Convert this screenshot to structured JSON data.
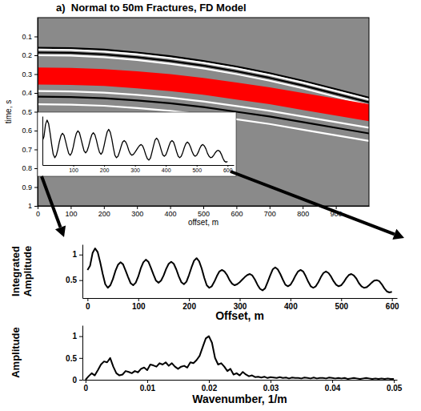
{
  "chart_data": [
    {
      "type": "seismic",
      "title": "a)  Normal to 50m Fractures, FD Model",
      "xlabel": "offset, m",
      "ylabel": "time, s",
      "x": [
        0,
        100,
        200,
        300,
        400,
        500,
        600,
        700,
        800,
        900,
        1000
      ],
      "series": [
        {
          "type": "line",
          "color": "#000000",
          "values": [
            0.16,
            0.162,
            0.17,
            0.185,
            0.205,
            0.23,
            0.26,
            0.295,
            0.335,
            0.38,
            0.425
          ]
        },
        {
          "type": "line",
          "color": "#ffffff",
          "values": [
            0.17,
            0.172,
            0.18,
            0.195,
            0.215,
            0.24,
            0.27,
            0.305,
            0.345,
            0.39,
            0.435
          ]
        },
        {
          "type": "line",
          "color": "#000000",
          "values": [
            0.185,
            0.187,
            0.195,
            0.21,
            0.23,
            0.255,
            0.285,
            0.32,
            0.36,
            0.405,
            0.45
          ]
        },
        {
          "type": "line",
          "color": "#ffffff",
          "values": [
            0.2,
            0.202,
            0.21,
            0.225,
            0.245,
            0.27,
            0.3,
            0.335,
            0.375,
            0.42,
            0.465
          ]
        },
        {
          "type": "area",
          "color": "#ff0000",
          "values": [
            0.265,
            0.267,
            0.273,
            0.285,
            0.3,
            0.32,
            0.345,
            0.37,
            0.4,
            0.43,
            0.46
          ],
          "base": [
            0.355,
            0.357,
            0.363,
            0.375,
            0.39,
            0.41,
            0.435,
            0.46,
            0.49,
            0.52,
            0.55
          ]
        },
        {
          "type": "line",
          "color": "#ffffff",
          "values": [
            0.39,
            0.392,
            0.398,
            0.41,
            0.425,
            0.445,
            0.47,
            0.495,
            0.525,
            0.555,
            0.585
          ]
        },
        {
          "type": "line",
          "color": "#000000",
          "values": [
            0.42,
            0.422,
            0.428,
            0.44,
            0.455,
            0.475,
            0.5,
            0.525,
            0.555,
            0.585,
            0.615
          ]
        },
        {
          "type": "line",
          "color": "#ffffff",
          "values": [
            0.46,
            0.462,
            0.468,
            0.48,
            0.495,
            0.515,
            0.54,
            0.565,
            0.595,
            0.625,
            0.655
          ]
        }
      ],
      "xlim": [
        0,
        1000
      ],
      "xticks": [
        0,
        100,
        200,
        300,
        400,
        500,
        600,
        700,
        800,
        900
      ],
      "ylim": [
        1,
        0
      ],
      "yticks": [
        0.1,
        0.2,
        0.3,
        0.4,
        0.5,
        0.6,
        0.7,
        0.8,
        0.9,
        1
      ]
    },
    {
      "type": "line",
      "color": "#000000",
      "tick_labels": "x",
      "x": [
        0,
        5,
        10,
        15,
        20,
        25,
        30,
        35,
        40,
        45,
        50,
        55,
        60,
        65,
        70,
        75,
        80,
        85,
        90,
        95,
        100,
        105,
        110,
        115,
        120,
        125,
        130,
        135,
        140,
        145,
        150,
        155,
        160,
        165,
        170,
        175,
        180,
        185,
        190,
        195,
        200,
        205,
        210,
        215,
        220,
        225,
        230,
        235,
        240,
        245,
        250,
        255,
        260,
        265,
        270,
        275,
        280,
        285,
        290,
        295,
        300,
        305,
        310,
        315,
        320,
        325,
        330,
        335,
        340,
        345,
        350,
        355,
        360,
        365,
        370,
        375,
        380,
        385,
        390,
        395,
        400,
        405,
        410,
        415,
        420,
        425,
        430,
        435,
        440,
        445,
        450,
        455,
        460,
        465,
        470,
        475,
        480,
        485,
        490,
        495,
        500,
        505,
        510,
        515,
        520,
        525,
        530,
        535,
        540,
        545,
        550,
        555,
        560,
        565,
        570,
        575,
        580,
        585,
        590,
        595,
        600
      ],
      "values": [
        0.7,
        0.78,
        1.03,
        1.12,
        1.05,
        0.85,
        0.62,
        0.42,
        0.35,
        0.4,
        0.52,
        0.68,
        0.8,
        0.85,
        0.81,
        0.69,
        0.56,
        0.44,
        0.4,
        0.45,
        0.57,
        0.73,
        0.85,
        0.9,
        0.86,
        0.74,
        0.61,
        0.49,
        0.45,
        0.49,
        0.59,
        0.72,
        0.82,
        0.86,
        0.82,
        0.71,
        0.57,
        0.46,
        0.42,
        0.47,
        0.6,
        0.75,
        0.88,
        0.93,
        0.87,
        0.73,
        0.55,
        0.4,
        0.35,
        0.38,
        0.47,
        0.58,
        0.67,
        0.7,
        0.67,
        0.6,
        0.5,
        0.43,
        0.4,
        0.42,
        0.46,
        0.51,
        0.56,
        0.6,
        0.62,
        0.59,
        0.51,
        0.41,
        0.33,
        0.3,
        0.34,
        0.46,
        0.59,
        0.71,
        0.75,
        0.71,
        0.62,
        0.51,
        0.41,
        0.38,
        0.41,
        0.49,
        0.59,
        0.67,
        0.7,
        0.67,
        0.58,
        0.47,
        0.38,
        0.35,
        0.38,
        0.46,
        0.56,
        0.64,
        0.67,
        0.64,
        0.57,
        0.48,
        0.41,
        0.38,
        0.4,
        0.46,
        0.54,
        0.6,
        0.62,
        0.59,
        0.53,
        0.44,
        0.38,
        0.35,
        0.36,
        0.4,
        0.45,
        0.49,
        0.5,
        0.48,
        0.42,
        0.34,
        0.28,
        0.26,
        0.27
      ],
      "xlim": [
        0,
        620
      ],
      "xticks": [
        100,
        200,
        300,
        400,
        500,
        600
      ],
      "ylim": [
        0.2,
        1.2
      ]
    },
    {
      "type": "line",
      "color": "#000000",
      "xlabel": "Offset, m",
      "ylabel": "Integrated Amplitude",
      "x": [
        0,
        5,
        10,
        15,
        20,
        25,
        30,
        35,
        40,
        45,
        50,
        55,
        60,
        65,
        70,
        75,
        80,
        85,
        90,
        95,
        100,
        105,
        110,
        115,
        120,
        125,
        130,
        135,
        140,
        145,
        150,
        155,
        160,
        165,
        170,
        175,
        180,
        185,
        190,
        195,
        200,
        205,
        210,
        215,
        220,
        225,
        230,
        235,
        240,
        245,
        250,
        255,
        260,
        265,
        270,
        275,
        280,
        285,
        290,
        295,
        300,
        305,
        310,
        315,
        320,
        325,
        330,
        335,
        340,
        345,
        350,
        355,
        360,
        365,
        370,
        375,
        380,
        385,
        390,
        395,
        400,
        405,
        410,
        415,
        420,
        425,
        430,
        435,
        440,
        445,
        450,
        455,
        460,
        465,
        470,
        475,
        480,
        485,
        490,
        495,
        500,
        505,
        510,
        515,
        520,
        525,
        530,
        535,
        540,
        545,
        550,
        555,
        560,
        565,
        570,
        575,
        580,
        585,
        590,
        595,
        600
      ],
      "values": [
        0.7,
        0.78,
        1.03,
        1.12,
        1.05,
        0.85,
        0.62,
        0.42,
        0.35,
        0.4,
        0.52,
        0.68,
        0.8,
        0.85,
        0.81,
        0.69,
        0.56,
        0.44,
        0.4,
        0.45,
        0.57,
        0.73,
        0.85,
        0.9,
        0.86,
        0.74,
        0.61,
        0.49,
        0.45,
        0.49,
        0.59,
        0.72,
        0.82,
        0.86,
        0.82,
        0.71,
        0.57,
        0.46,
        0.42,
        0.47,
        0.6,
        0.75,
        0.88,
        0.93,
        0.87,
        0.73,
        0.55,
        0.4,
        0.35,
        0.38,
        0.47,
        0.58,
        0.67,
        0.7,
        0.67,
        0.6,
        0.5,
        0.43,
        0.4,
        0.42,
        0.46,
        0.51,
        0.56,
        0.6,
        0.62,
        0.59,
        0.51,
        0.41,
        0.33,
        0.3,
        0.34,
        0.46,
        0.59,
        0.71,
        0.75,
        0.71,
        0.62,
        0.51,
        0.41,
        0.38,
        0.41,
        0.49,
        0.59,
        0.67,
        0.7,
        0.67,
        0.58,
        0.47,
        0.38,
        0.35,
        0.38,
        0.46,
        0.56,
        0.64,
        0.67,
        0.64,
        0.57,
        0.48,
        0.41,
        0.38,
        0.4,
        0.46,
        0.54,
        0.6,
        0.62,
        0.59,
        0.53,
        0.44,
        0.38,
        0.35,
        0.36,
        0.4,
        0.45,
        0.49,
        0.5,
        0.48,
        0.42,
        0.34,
        0.28,
        0.26,
        0.27
      ],
      "xlim": [
        -10,
        610
      ],
      "xticks": [
        0,
        100,
        200,
        300,
        400,
        500,
        600
      ],
      "ylim": [
        0.15,
        1.2
      ],
      "yticks": [
        0.5,
        1
      ]
    },
    {
      "type": "line",
      "color": "#000000",
      "xlabel": "Wavenumber, 1/m",
      "ylabel": "Amplitude",
      "x": [
        0,
        0.0005,
        0.001,
        0.0015,
        0.002,
        0.0025,
        0.003,
        0.0035,
        0.004,
        0.0045,
        0.005,
        0.0055,
        0.006,
        0.0065,
        0.007,
        0.0075,
        0.008,
        0.0085,
        0.009,
        0.0095,
        0.01,
        0.0105,
        0.011,
        0.0115,
        0.012,
        0.0125,
        0.013,
        0.0135,
        0.014,
        0.0145,
        0.015,
        0.0155,
        0.016,
        0.0165,
        0.017,
        0.0175,
        0.018,
        0.0185,
        0.019,
        0.0195,
        0.02,
        0.0205,
        0.021,
        0.0215,
        0.022,
        0.0225,
        0.023,
        0.0235,
        0.024,
        0.0245,
        0.025,
        0.0255,
        0.026,
        0.0265,
        0.027,
        0.0275,
        0.028,
        0.0285,
        0.029,
        0.0295,
        0.03,
        0.0305,
        0.031,
        0.0315,
        0.032,
        0.0325,
        0.033,
        0.0335,
        0.034,
        0.0345,
        0.035,
        0.0355,
        0.036,
        0.0365,
        0.037,
        0.0375,
        0.038,
        0.0385,
        0.039,
        0.0395,
        0.04,
        0.0405,
        0.041,
        0.0415,
        0.042,
        0.0425,
        0.043,
        0.0435,
        0.044,
        0.0445,
        0.045,
        0.0455,
        0.046,
        0.0465,
        0.047,
        0.0475,
        0.048,
        0.0485,
        0.049,
        0.0495,
        0.05
      ],
      "values": [
        0,
        0.08,
        0.15,
        0.1,
        0.22,
        0.35,
        0.42,
        0.4,
        0.5,
        0.3,
        0.15,
        0.1,
        0.12,
        0.2,
        0.18,
        0.15,
        0.2,
        0.17,
        0.25,
        0.28,
        0.22,
        0.35,
        0.33,
        0.3,
        0.38,
        0.35,
        0.4,
        0.32,
        0.38,
        0.3,
        0.25,
        0.3,
        0.32,
        0.28,
        0.4,
        0.38,
        0.45,
        0.55,
        0.75,
        0.95,
        1.0,
        0.85,
        0.5,
        0.35,
        0.38,
        0.3,
        0.2,
        0.25,
        0.12,
        0.15,
        0.1,
        0.18,
        0.12,
        0.08,
        0.1,
        0.06,
        0.07,
        0.05,
        0.07,
        0.04,
        0.06,
        0.05,
        0.04,
        0.06,
        0.04,
        0.05,
        0.03,
        0.05,
        0.04,
        0.04,
        0.03,
        0.05,
        0.04,
        0.03,
        0.05,
        0.03,
        0.04,
        0.04,
        0.03,
        0.05,
        0.04,
        0.03,
        0.04,
        0.03,
        0.04,
        0.02,
        0.03,
        0.04,
        0.03,
        0.02,
        0.03,
        0.04,
        0.03,
        0.02,
        0.03,
        0.02,
        0.03,
        0.02,
        0.03,
        0.02,
        0.02
      ],
      "xlim": [
        -0.0005,
        0.0505
      ],
      "xticks": [
        0,
        0.01,
        0.02,
        0.03,
        0.04,
        0.05
      ],
      "ylim": [
        0,
        1.25
      ],
      "yticks": [
        0,
        0.5,
        1
      ]
    }
  ]
}
